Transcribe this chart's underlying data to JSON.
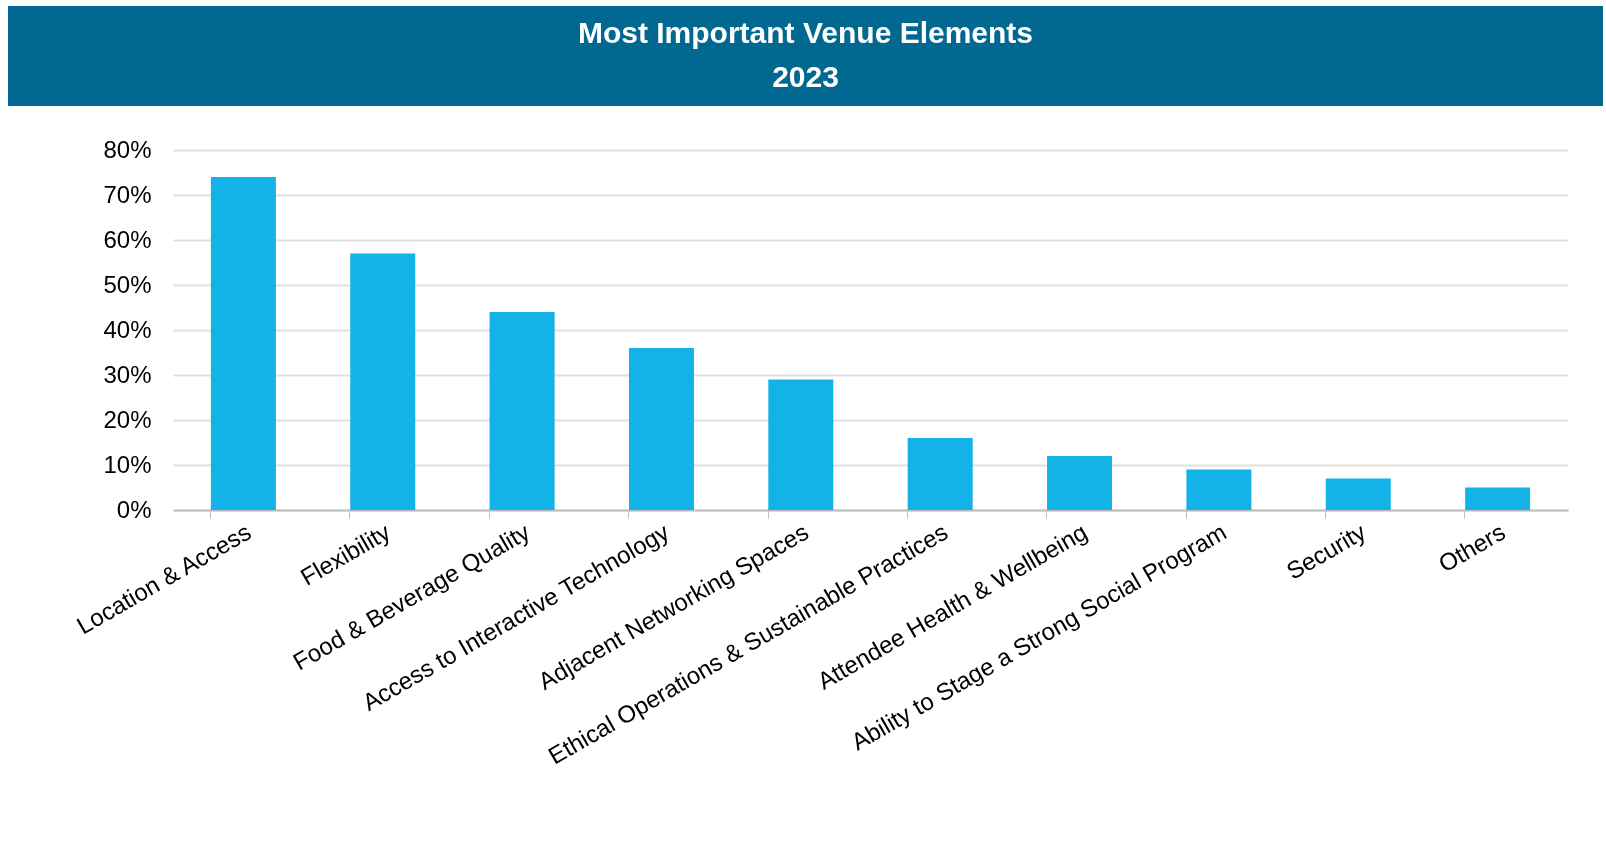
{
  "chart_data": {
    "type": "bar",
    "title": "Most Important Venue Elements",
    "subtitle": "2023",
    "categories": [
      "Location & Access",
      "Flexibility",
      "Food & Beverage Quality",
      "Access to Interactive Technology",
      "Adjacent Networking Spaces",
      "Ethical Operations & Sustainable Practices",
      "Attendee Health & Wellbeing",
      "Ability to Stage a Strong Social Program",
      "Security",
      "Others"
    ],
    "values": [
      74,
      57,
      44,
      36,
      29,
      16,
      12,
      9,
      7,
      5
    ],
    "color": "#13b3e8",
    "ylim": [
      0,
      80
    ],
    "yticks": [
      {
        "value": 0,
        "label": "0%"
      },
      {
        "value": 10,
        "label": "10%"
      },
      {
        "value": 20,
        "label": "20%"
      },
      {
        "value": 30,
        "label": "30%"
      },
      {
        "value": 40,
        "label": "40%"
      },
      {
        "value": 50,
        "label": "50%"
      },
      {
        "value": 60,
        "label": "60%"
      },
      {
        "value": 70,
        "label": "70%"
      },
      {
        "value": 80,
        "label": "80%"
      }
    ],
    "grid": "y"
  }
}
